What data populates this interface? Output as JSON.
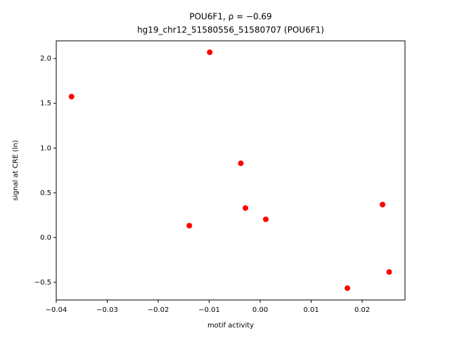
{
  "chart_data": {
    "type": "scatter",
    "title": "POU6F1, ρ = −0.69",
    "subtitle": "hg19_chr12_51580556_51580707 (POU6F1)",
    "x_label": "motif activity",
    "y_label": "signal at CRE (ln)",
    "color": "#ff0000",
    "x": [
      -0.037,
      -0.0099,
      -0.0038,
      -0.0029,
      -0.0139,
      0.0011,
      0.024,
      0.0253,
      0.0171
    ],
    "values": [
      1.575,
      2.07,
      0.83,
      0.33,
      0.133,
      0.204,
      0.369,
      -0.384,
      -0.565
    ],
    "xlim": [
      -0.04,
      0.0284
    ],
    "ylim": [
      -0.697,
      2.198
    ],
    "xticks": [
      {
        "value": -0.04,
        "label": "−0.04"
      },
      {
        "value": -0.03,
        "label": "−0.03"
      },
      {
        "value": -0.02,
        "label": "−0.02"
      },
      {
        "value": -0.01,
        "label": "−0.01"
      },
      {
        "value": 0,
        "label": "0.00"
      },
      {
        "value": 0.01,
        "label": "0.01"
      },
      {
        "value": 0.02,
        "label": "0.02"
      }
    ],
    "yticks": [
      {
        "value": -0.5,
        "label": "−0.5"
      },
      {
        "value": 0,
        "label": "0.0"
      },
      {
        "value": 0.5,
        "label": "0.5"
      },
      {
        "value": 1,
        "label": "1.0"
      },
      {
        "value": 1.5,
        "label": "1.5"
      },
      {
        "value": 2,
        "label": "2.0"
      }
    ],
    "grid": false
  }
}
